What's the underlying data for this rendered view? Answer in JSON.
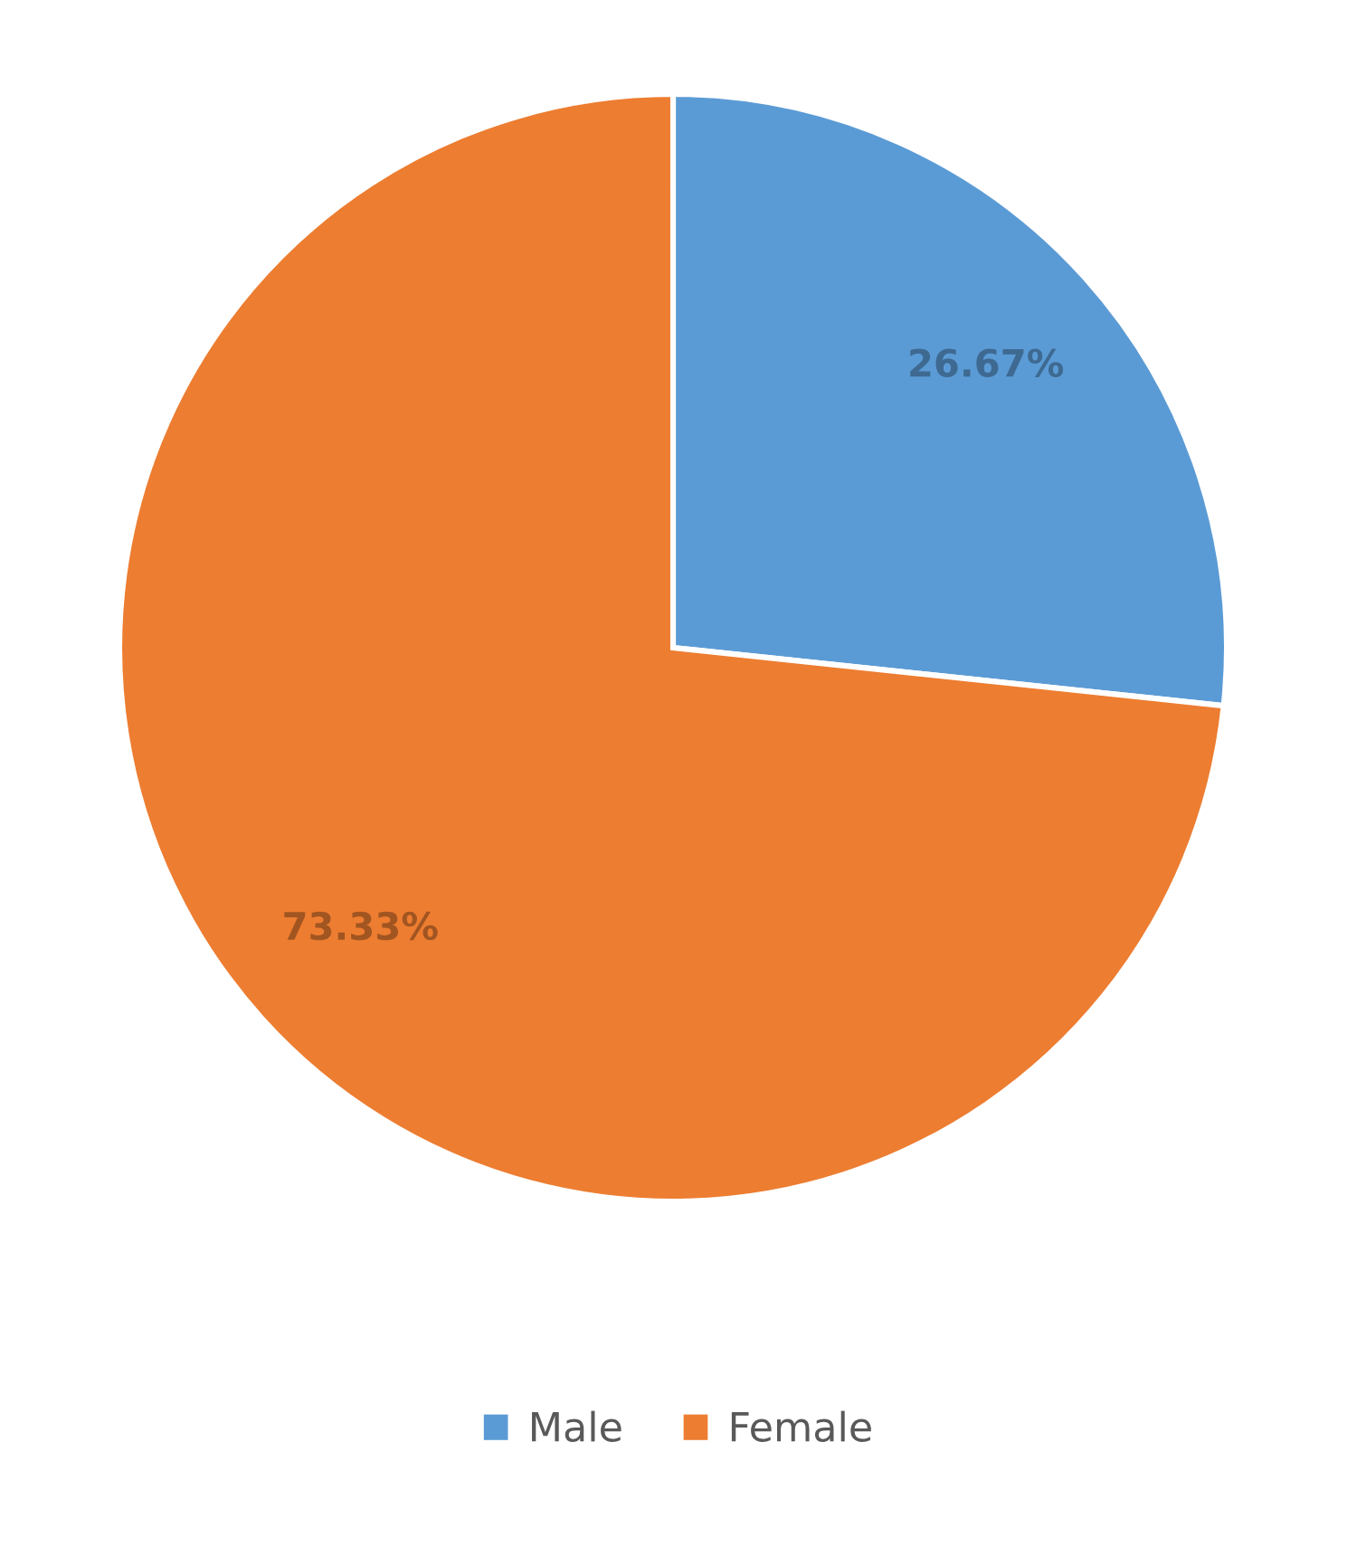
{
  "chart_data": {
    "type": "pie",
    "categories": [
      "Male",
      "Female"
    ],
    "values": [
      26.67,
      73.33
    ],
    "colors": [
      "#5b9bd5",
      "#ed7d31"
    ],
    "value_labels": [
      "26.67%",
      "73.33%"
    ],
    "legend": "bottom"
  }
}
